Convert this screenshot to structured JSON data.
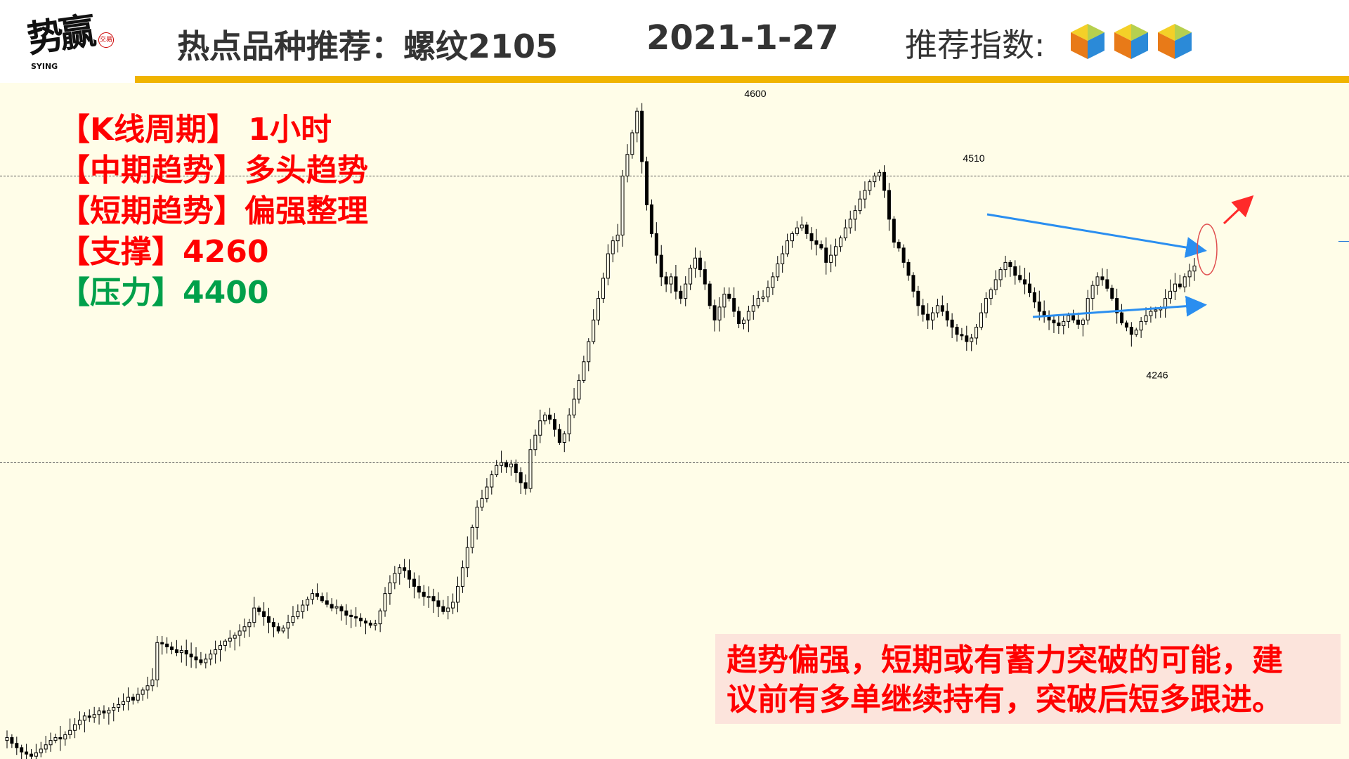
{
  "header": {
    "logo_text": "势赢",
    "logo_sub": "SYING",
    "logo_seal": "交易",
    "title": "热点品种推荐：螺纹2105",
    "date": "2021-1-27",
    "rating_label": "推荐指数:",
    "rating_icons": [
      "cube-icon",
      "cube-icon",
      "cube-icon"
    ],
    "bar_color": "#f0b400"
  },
  "info": {
    "period": "【K线周期】 1小时",
    "mid_trend": "【中期趋势】多头趋势",
    "short_trend": "【短期趋势】偏强整理",
    "support": "【支撑】4260",
    "resistance": "【压力】4400"
  },
  "note": {
    "line1": "趋势偏强，短期或有蓄力突破的可能，建",
    "line2": "议前有多单继续持有，突破后短多跟进。"
  },
  "colors": {
    "text_red": "#ff0000",
    "text_green": "#00a04a",
    "candle": "#000000",
    "trend_line": "#2a8ef0",
    "arrow_red": "#ff2a2a",
    "chart_bg": "#fffde8"
  },
  "chart_data": {
    "type": "candlestick",
    "title": "",
    "xlabel": "",
    "ylabel": "",
    "ylim": [
      3600,
      4620
    ],
    "grid": false,
    "levels": [
      4510,
      4150
    ],
    "annotations": [
      {
        "text": "4600",
        "value": 4600
      },
      {
        "text": "4510",
        "value": 4510
      },
      {
        "text": "4246",
        "value": 4246
      }
    ],
    "closes": [
      3720,
      3712,
      3706,
      3700,
      3697,
      3694,
      3699,
      3704,
      3710,
      3716,
      3720,
      3718,
      3724,
      3730,
      3738,
      3744,
      3750,
      3748,
      3752,
      3757,
      3754,
      3758,
      3762,
      3766,
      3770,
      3776,
      3772,
      3780,
      3786,
      3792,
      3800,
      3852,
      3850,
      3846,
      3842,
      3838,
      3841,
      3836,
      3832,
      3828,
      3824,
      3829,
      3836,
      3842,
      3848,
      3854,
      3858,
      3862,
      3868,
      3874,
      3880,
      3900,
      3895,
      3888,
      3880,
      3874,
      3868,
      3872,
      3880,
      3888,
      3895,
      3904,
      3912,
      3920,
      3916,
      3910,
      3905,
      3900,
      3902,
      3896,
      3890,
      3888,
      3886,
      3882,
      3879,
      3876,
      3878,
      3896,
      3920,
      3935,
      3948,
      3956,
      3952,
      3940,
      3930,
      3922,
      3916,
      3916,
      3910,
      3902,
      3895,
      3900,
      3908,
      3930,
      3956,
      3984,
      4012,
      4040,
      4052,
      4068,
      4085,
      4098,
      4102,
      4096,
      4100,
      4088,
      4074,
      4066,
      4120,
      4140,
      4160,
      4168,
      4162,
      4148,
      4130,
      4142,
      4168,
      4190,
      4216,
      4242,
      4270,
      4300,
      4330,
      4358,
      4392,
      4410,
      4418,
      4500,
      4530,
      4560,
      4590,
      4520,
      4460,
      4420,
      4390,
      4360,
      4350,
      4360,
      4340,
      4330,
      4350,
      4372,
      4386,
      4370,
      4350,
      4320,
      4300,
      4318,
      4336,
      4330,
      4312,
      4295,
      4300,
      4312,
      4320,
      4330,
      4332,
      4345,
      4360,
      4378,
      4392,
      4410,
      4420,
      4428,
      4432,
      4420,
      4410,
      4405,
      4400,
      4380,
      4390,
      4402,
      4414,
      4428,
      4440,
      4452,
      4468,
      4480,
      4492,
      4500,
      4505,
      4480,
      4440,
      4408,
      4400,
      4380,
      4362,
      4340,
      4320,
      4308,
      4300,
      4310,
      4320,
      4312,
      4300,
      4290,
      4280,
      4278,
      4270,
      4275,
      4290,
      4310,
      4330,
      4342,
      4356,
      4370,
      4380,
      4374,
      4362,
      4356,
      4350,
      4338,
      4325,
      4312,
      4305,
      4300,
      4296,
      4292,
      4298,
      4306,
      4300,
      4294,
      4300,
      4330,
      4348,
      4360,
      4356,
      4344,
      4330,
      4310,
      4296,
      4290,
      4280,
      4286,
      4298,
      4306,
      4312,
      4314,
      4316,
      4330,
      4340,
      4350,
      4346,
      4360,
      4368,
      4375
    ]
  }
}
